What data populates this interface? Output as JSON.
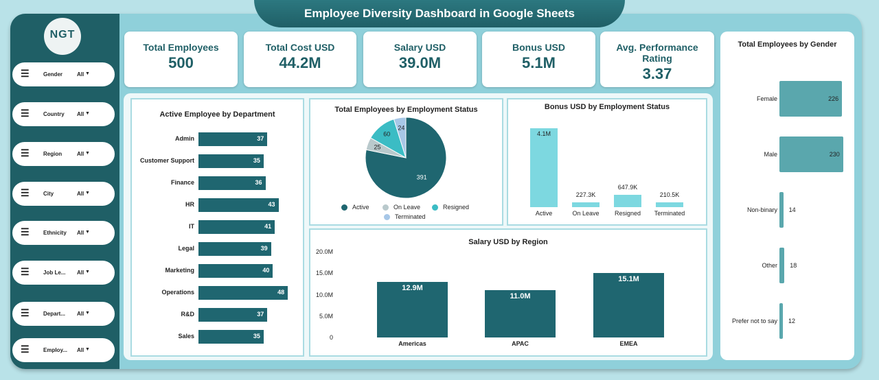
{
  "title": "Employee Diversity Dashboard in Google Sheets",
  "logo": "NGT",
  "filters": [
    {
      "label": "Gender",
      "value": "All"
    },
    {
      "label": "Country",
      "value": "All"
    },
    {
      "label": "Region",
      "value": "All"
    },
    {
      "label": "City",
      "value": "All"
    },
    {
      "label": "Ethnicity",
      "value": "All"
    },
    {
      "label": "Job Le...",
      "value": "All"
    },
    {
      "label": "Depart...",
      "value": "All"
    },
    {
      "label": "Employ...",
      "value": "All"
    }
  ],
  "kpis": [
    {
      "title": "Total Employees",
      "value": "500"
    },
    {
      "title": "Total Cost USD",
      "value": "44.2M"
    },
    {
      "title": "Salary USD",
      "value": "39.0M"
    },
    {
      "title": "Bonus USD",
      "value": "5.1M"
    },
    {
      "title": "Avg. Performance Rating",
      "value": "3.37"
    }
  ],
  "colors": {
    "dark": "#1f6670",
    "light": "#7dd8e0",
    "gender": "#5aa7ad",
    "sidebar": "#1f5f66"
  },
  "chart_data": [
    {
      "type": "bar",
      "orientation": "horizontal",
      "title": "Active Employee by Department",
      "categories": [
        "Admin",
        "Customer Support",
        "Finance",
        "HR",
        "IT",
        "Legal",
        "Marketing",
        "Operations",
        "R&D",
        "Sales"
      ],
      "values": [
        37,
        35,
        36,
        43,
        41,
        39,
        40,
        48,
        37,
        35
      ]
    },
    {
      "type": "pie",
      "title": "Total Employees by Employment Status",
      "categories": [
        "Active",
        "On Leave",
        "Resigned",
        "Terminated"
      ],
      "values": [
        391,
        25,
        60,
        24
      ],
      "colors": [
        "#1f6670",
        "#b9c9cc",
        "#3bbcc4",
        "#a7c7e7"
      ],
      "legend": "bottom"
    },
    {
      "type": "bar",
      "title": "Bonus USD by Employment Status",
      "categories": [
        "Active",
        "On Leave",
        "Resigned",
        "Terminated"
      ],
      "values": [
        4100000,
        227300,
        647900,
        210500
      ],
      "labels": [
        "4.1M",
        "227.3K",
        "647.9K",
        "210.5K"
      ]
    },
    {
      "type": "bar",
      "title": "Salary USD by Region",
      "categories": [
        "Americas",
        "APAC",
        "EMEA"
      ],
      "values": [
        12.9,
        11.0,
        15.1
      ],
      "labels": [
        "12.9M",
        "11.0M",
        "15.1M"
      ],
      "yticks": [
        "0",
        "5.0M",
        "10.0M",
        "15.0M",
        "20.0M"
      ],
      "ylim": [
        0,
        20
      ]
    },
    {
      "type": "bar",
      "orientation": "horizontal",
      "title": "Total Employees by Gender",
      "categories": [
        "Female",
        "Male",
        "Non-binary",
        "Other",
        "Prefer not to say"
      ],
      "values": [
        226,
        230,
        14,
        18,
        12
      ]
    }
  ]
}
